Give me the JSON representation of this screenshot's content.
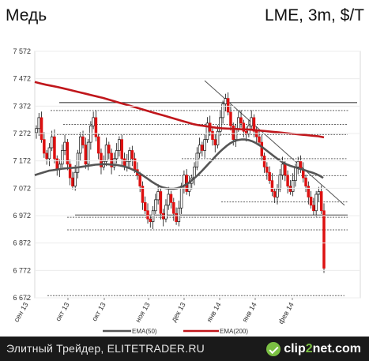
{
  "header": {
    "title": "Медь",
    "instrument": "LME, 3m, $/T"
  },
  "footer": {
    "source": "Элитный Трейдер, ELITETRADER.RU",
    "logo_pre": "clip",
    "logo_num": "2",
    "logo_post": "net.com"
  },
  "colors": {
    "candle_up": "#111111",
    "candle_down": "#dd1111",
    "ema50": "#555555",
    "ema200": "#c0161b"
  },
  "chart_data": {
    "type": "candlestick",
    "title": "Медь",
    "subtitle": "LME, 3m, $/T",
    "ylim": [
      6672,
      7572
    ],
    "yticks": [
      7572,
      7472,
      7372,
      7272,
      7172,
      7072,
      6972,
      6872,
      6772,
      6672
    ],
    "ytick_labels": [
      "7 572",
      "7 472",
      "7 372",
      "7 272",
      "7 172",
      "7 072",
      "6 972",
      "6 872",
      "6 772",
      "6 672"
    ],
    "xticks": [
      "сен 13",
      "окт 13",
      "окт 13",
      "ноя 13",
      "дек 13",
      "янв 14",
      "янв 14",
      "фев 14"
    ],
    "legend": [
      {
        "name": "EMA(50)"
      },
      {
        "name": "EMA(200)"
      }
    ],
    "legend_position": "bottom",
    "grid": "horizontal",
    "candles_close": [
      7290,
      7330,
      7250,
      7200,
      7180,
      7220,
      7260,
      7180,
      7140,
      7160,
      7210,
      7240,
      7160,
      7110,
      7080,
      7130,
      7200,
      7260,
      7230,
      7160,
      7240,
      7300,
      7330,
      7260,
      7200,
      7150,
      7170,
      7230,
      7200,
      7150,
      7180,
      7210,
      7250,
      7180,
      7150,
      7170,
      7210,
      7180,
      7140,
      7120,
      7080,
      7020,
      6990,
      6960,
      6950,
      6990,
      7030,
      7060,
      6980,
      6960,
      7010,
      7050,
      7020,
      6980,
      6950,
      7000,
      7080,
      7120,
      7060,
      7090,
      7110,
      7150,
      7200,
      7230,
      7210,
      7250,
      7310,
      7280,
      7250,
      7230,
      7280,
      7330,
      7380,
      7400,
      7350,
      7300,
      7250,
      7290,
      7330,
      7310,
      7280,
      7270,
      7300,
      7330,
      7280,
      7260,
      7240,
      7190,
      7150,
      7130,
      7100,
      7060,
      7040,
      7070,
      7120,
      7160,
      7120,
      7080,
      7060,
      7100,
      7150,
      7170,
      7140,
      7110,
      7080,
      7040,
      7010,
      6990,
      7050,
      7060,
      6990,
      6780
    ],
    "ema50": [
      7120,
      7124,
      7128,
      7132,
      7136,
      7138,
      7140,
      7142,
      7144,
      7145,
      7146,
      7147,
      7148,
      7150,
      7152,
      7154,
      7156,
      7158,
      7159,
      7160,
      7160,
      7159,
      7158,
      7157,
      7155,
      7152,
      7148,
      7143,
      7137,
      7130,
      7122,
      7113,
      7104,
      7095,
      7087,
      7080,
      7075,
      7072,
      7070,
      7070,
      7072,
      7076,
      7082,
      7090,
      7100,
      7111,
      7123,
      7136,
      7150,
      7164,
      7178,
      7192,
      7205,
      7217,
      7228,
      7237,
      7244,
      7248,
      7250,
      7250,
      7248,
      7244,
      7238,
      7230,
      7221,
      7211,
      7201,
      7191,
      7181,
      7172,
      7164,
      7158,
      7153,
      7149,
      7145,
      7141,
      7137,
      7133,
      7129,
      7124,
      7118,
      7110
    ],
    "ema200": [
      7460,
      7455,
      7450,
      7446,
      7442,
      7437,
      7432,
      7427,
      7422,
      7417,
      7412,
      7407,
      7402,
      7396,
      7390,
      7384,
      7378,
      7372,
      7366,
      7360,
      7354,
      7348,
      7342,
      7336,
      7330,
      7324,
      7318,
      7312,
      7306,
      7302,
      7299,
      7296,
      7293,
      7291,
      7290,
      7289,
      7288,
      7287,
      7286,
      7284,
      7282,
      7280,
      7278,
      7276,
      7274,
      7272,
      7270,
      7268,
      7266,
      7264,
      7262,
      7258
    ],
    "support_resistance_levels": [
      7385,
      7356,
      7305,
      7268,
      7180,
      7118,
      7022,
      6974,
      6966,
      6920,
      6680
    ],
    "trendline": [
      [
        7465,
        7010
      ]
    ],
    "last_close": 6780
  }
}
